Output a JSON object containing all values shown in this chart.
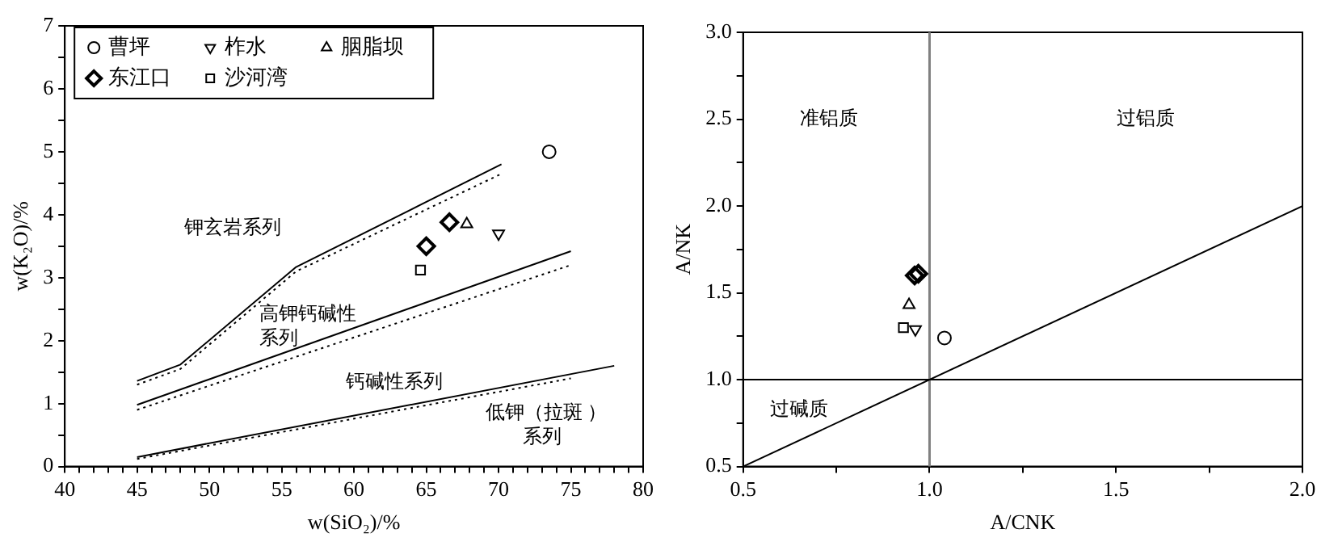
{
  "chart_data": [
    {
      "type": "scatter",
      "xlabel": "w(SiO₂)/%",
      "ylabel": "w(K₂O)/%",
      "xlim": [
        40,
        80
      ],
      "ylim": [
        0,
        7
      ],
      "xticks": [
        40,
        {
          "value": 41,
          "label": null
        },
        {
          "value": 42,
          "label": null
        },
        {
          "value": 43,
          "label": null
        },
        {
          "value": 44,
          "label": null
        },
        45,
        {
          "value": 46,
          "label": null
        },
        {
          "value": 47,
          "label": null
        },
        {
          "value": 48,
          "label": null
        },
        {
          "value": 49,
          "label": null
        },
        50,
        {
          "value": 51,
          "label": null
        },
        {
          "value": 52,
          "label": null
        },
        {
          "value": 53,
          "label": null
        },
        {
          "value": 54,
          "label": null
        },
        55,
        {
          "value": 56,
          "label": null
        },
        {
          "value": 57,
          "label": null
        },
        {
          "value": 58,
          "label": null
        },
        {
          "value": 59,
          "label": null
        },
        60,
        {
          "value": 61,
          "label": null
        },
        {
          "value": 62,
          "label": null
        },
        {
          "value": 63,
          "label": null
        },
        {
          "value": 64,
          "label": null
        },
        65,
        {
          "value": 66,
          "label": null
        },
        {
          "value": 67,
          "label": null
        },
        {
          "value": 68,
          "label": null
        },
        {
          "value": 69,
          "label": null
        },
        70,
        {
          "value": 71,
          "label": null
        },
        {
          "value": 72,
          "label": null
        },
        {
          "value": 73,
          "label": null
        },
        {
          "value": 74,
          "label": null
        },
        75,
        {
          "value": 76,
          "label": null
        },
        {
          "value": 77,
          "label": null
        },
        {
          "value": 78,
          "label": null
        },
        {
          "value": 79,
          "label": null
        },
        80
      ],
      "yticks": [
        0,
        {
          "value": 0.5,
          "label": null
        },
        1,
        {
          "value": 1.5,
          "label": null
        },
        2,
        {
          "value": 2.5,
          "label": null
        },
        3,
        {
          "value": 3.5,
          "label": null
        },
        4,
        {
          "value": 4.5,
          "label": null
        },
        5,
        {
          "value": 5.5,
          "label": null
        },
        6,
        {
          "value": 6.5,
          "label": null
        },
        7
      ],
      "grid": false,
      "legend": "top left",
      "series": [
        {
          "name": "曹坪",
          "color": "#000000",
          "marker": "circle",
          "x": [
            73.5
          ],
          "values": [
            5.0
          ]
        },
        {
          "name": "柞水",
          "color": "#000000",
          "marker": "triangle-down",
          "x": [
            70
          ],
          "values": [
            3.7
          ]
        },
        {
          "name": "胭脂坝",
          "color": "#000000",
          "marker": "triangle",
          "x": [
            67.8
          ],
          "values": [
            3.85
          ]
        },
        {
          "name": "东江口",
          "color": "#000000",
          "marker": "diamond",
          "x": [
            65,
            66.6
          ],
          "values": [
            3.5,
            3.88
          ]
        },
        {
          "name": "沙河湾",
          "color": "#000000",
          "marker": "square",
          "x": [
            64.6
          ],
          "values": [
            3.12
          ]
        },
        {
          "type": "line",
          "color": "#000000",
          "line_style": "solid",
          "x": [
            45,
            48,
            56,
            70.2
          ],
          "values": [
            1.36,
            1.62,
            3.17,
            4.8
          ]
        },
        {
          "type": "line",
          "color": "#000000",
          "line_style": "dotted",
          "x": [
            45,
            48,
            56,
            70.2
          ],
          "values": [
            1.3,
            1.55,
            3.1,
            4.65
          ]
        },
        {
          "type": "line",
          "color": "#000000",
          "line_style": "solid",
          "x": [
            45,
            75
          ],
          "values": [
            0.98,
            3.42
          ]
        },
        {
          "type": "line",
          "color": "#000000",
          "line_style": "dotted",
          "x": [
            45,
            75
          ],
          "values": [
            0.9,
            3.2
          ]
        },
        {
          "type": "line",
          "color": "#000000",
          "line_style": "solid",
          "x": [
            45,
            78
          ],
          "values": [
            0.15,
            1.6
          ]
        },
        {
          "type": "line",
          "color": "#000000",
          "line_style": "dotted",
          "x": [
            45,
            75
          ],
          "values": [
            0.12,
            1.4
          ]
        }
      ],
      "annotations": [
        "钾玄岩系列",
        "高钾钙碱性",
        "系列",
        "钙碱性系列",
        "低钾（拉斑 ）",
        "系列"
      ]
    },
    {
      "type": "scatter",
      "xlabel": "A/CNK",
      "ylabel": "A/NK",
      "xlim": [
        0.5,
        2.0
      ],
      "ylim": [
        0.5,
        3.0
      ],
      "xticks": [
        {
          "value": 0.5,
          "label": "0.5"
        },
        {
          "value": 0.75,
          "label": null
        },
        {
          "value": 1,
          "label": "1.0"
        },
        {
          "value": 1.25,
          "label": null
        },
        {
          "value": 1.5,
          "label": "1.5"
        },
        {
          "value": 1.75,
          "label": null
        },
        {
          "value": 2,
          "label": "2.0"
        }
      ],
      "yticks": [
        {
          "value": 0.5,
          "label": "0.5"
        },
        {
          "value": 0.75,
          "label": null
        },
        {
          "value": 1,
          "label": "1.0"
        },
        {
          "value": 1.25,
          "label": null
        },
        {
          "value": 1.5,
          "label": "1.5"
        },
        {
          "value": 1.75,
          "label": null
        },
        {
          "value": 2,
          "label": "2.0"
        },
        {
          "value": 2.25,
          "label": null
        },
        {
          "value": 2.5,
          "label": "2.5"
        },
        {
          "value": 2.75,
          "label": null
        },
        {
          "value": 3,
          "label": "3.0"
        }
      ],
      "grid": false,
      "series": [
        {
          "color": "#000000",
          "marker": "circle",
          "x": [
            1.04
          ],
          "values": [
            1.24
          ]
        },
        {
          "color": "#000000",
          "marker": "triangle-down",
          "x": [
            0.962
          ],
          "values": [
            1.29
          ]
        },
        {
          "color": "#000000",
          "marker": "triangle",
          "x": [
            0.945
          ],
          "values": [
            1.43
          ]
        },
        {
          "color": "#000000",
          "marker": "diamond",
          "x": [
            0.96,
            0.97
          ],
          "values": [
            1.6,
            1.61
          ]
        },
        {
          "color": "#000000",
          "marker": "square",
          "x": [
            0.93
          ],
          "values": [
            1.3
          ]
        },
        {
          "type": "line",
          "color": "#000000",
          "line_style": "solid",
          "x": [
            0.5,
            2.0
          ],
          "values": [
            0.5,
            2.0
          ]
        }
      ],
      "ref_lines": [
        {
          "axis": "x",
          "value": 1,
          "color": "#808080"
        },
        {
          "axis": "y",
          "value": 1,
          "color": "#000000"
        }
      ],
      "annotations": [
        "准铝质",
        "过铝质",
        "过碱质"
      ]
    }
  ]
}
